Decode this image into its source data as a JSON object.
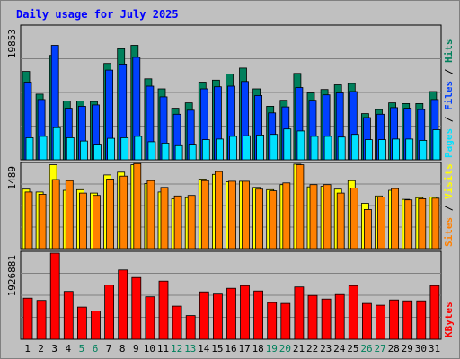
{
  "chart_data": {
    "type": "bar",
    "title": "Daily usage for July 2025",
    "days": [
      "1",
      "2",
      "3",
      "4",
      "5",
      "6",
      "7",
      "8",
      "9",
      "10",
      "11",
      "12",
      "13",
      "14",
      "15",
      "16",
      "17",
      "18",
      "19",
      "20",
      "21",
      "22",
      "23",
      "24",
      "25",
      "26",
      "27",
      "28",
      "29",
      "30",
      "31"
    ],
    "weekend_days": [
      "5",
      "6",
      "12",
      "13",
      "19",
      "20",
      "26",
      "27"
    ],
    "panels": [
      {
        "id": "hits",
        "axis_max_label": "19853",
        "ymax": 19853,
        "series": [
          {
            "name": "Hits",
            "color": "#00805c",
            "values": [
              13200,
              9800,
              15600,
              8800,
              8800,
              8700,
              14400,
              16600,
              17100,
              12100,
              10600,
              7700,
              8500,
              11600,
              11900,
              12800,
              13700,
              10600,
              8000,
              8900,
              12900,
              10000,
              10500,
              11200,
              11400,
              6900,
              7500,
              8500,
              8400,
              8400,
              10200
            ]
          },
          {
            "name": "Files",
            "color": "#0040ff",
            "values": [
              11600,
              9000,
              17100,
              7700,
              8000,
              8200,
              13400,
              14300,
              15300,
              11000,
              9400,
              6800,
              7400,
              10600,
              10900,
              11000,
              11700,
              9600,
              7000,
              7900,
              10800,
              8900,
              9700,
              10000,
              10200,
              6300,
              6800,
              7800,
              7700,
              7500,
              9000
            ]
          },
          {
            "name": "Pages",
            "color": "#00e0ff",
            "values": [
              3300,
              3500,
              4800,
              3300,
              2800,
              2200,
              3200,
              3300,
              3500,
              2700,
              2500,
              2100,
              2200,
              3000,
              3100,
              3500,
              3600,
              3700,
              3800,
              4600,
              4300,
              3500,
              3500,
              3400,
              3800,
              3000,
              3000,
              3100,
              3100,
              2900,
              4500
            ]
          }
        ]
      },
      {
        "id": "visits",
        "axis_max_label": "1489",
        "ymax": 1489,
        "series": [
          {
            "name": "Visits",
            "color": "#ffff00",
            "values": [
              1050,
              1000,
              1480,
              1030,
              1040,
              980,
              1300,
              1350,
              1480,
              1150,
              1000,
              880,
              900,
              1230,
              1310,
              1180,
              1190,
              1080,
              1040,
              1130,
              1490,
              1090,
              1100,
              1050,
              1200,
              800,
              930,
              1030,
              870,
              900,
              910
            ]
          },
          {
            "name": "Sites",
            "color": "#ff8000",
            "values": [
              1000,
              960,
              1220,
              1200,
              980,
              940,
              1230,
              1280,
              1500,
              1200,
              1080,
              930,
              940,
              1200,
              1360,
              1190,
              1190,
              1050,
              1020,
              1160,
              1480,
              1130,
              1130,
              980,
              1070,
              690,
              910,
              1060,
              860,
              880,
              890
            ]
          }
        ]
      },
      {
        "id": "kbytes",
        "axis_max_label": "1926881",
        "ymax": 1926881,
        "series": [
          {
            "name": "KBytes",
            "color": "#ff0000",
            "values": [
              920000,
              870000,
              1926881,
              1070000,
              720000,
              630000,
              1210000,
              1550000,
              1380000,
              950000,
              1300000,
              740000,
              530000,
              1060000,
              1010000,
              1140000,
              1200000,
              1080000,
              820000,
              800000,
              1170000,
              980000,
              900000,
              1000000,
              1200000,
              800000,
              760000,
              880000,
              860000,
              860000,
              1200000
            ]
          }
        ]
      }
    ],
    "right_labels": {
      "hits": [
        {
          "text": "Pages",
          "color": "#00e0ff"
        },
        {
          "text": " / ",
          "color": "#000000"
        },
        {
          "text": "Files",
          "color": "#0040ff"
        },
        {
          "text": " / ",
          "color": "#000000"
        },
        {
          "text": "Hits",
          "color": "#00805c"
        }
      ],
      "visits": [
        {
          "text": "Sites",
          "color": "#ff8000"
        },
        {
          "text": " / ",
          "color": "#000000"
        },
        {
          "text": "Visits",
          "color": "#ffff00"
        }
      ],
      "kbytes": [
        {
          "text": "KBytes",
          "color": "#ff0000"
        }
      ]
    },
    "colors": {
      "title": "#0000ff",
      "frame_bg": "#c0c0c0",
      "panel_bg": "#c0c0c0",
      "grid": "#808080",
      "weekday": "#000000",
      "weekend": "#00805c"
    },
    "grid": true
  }
}
